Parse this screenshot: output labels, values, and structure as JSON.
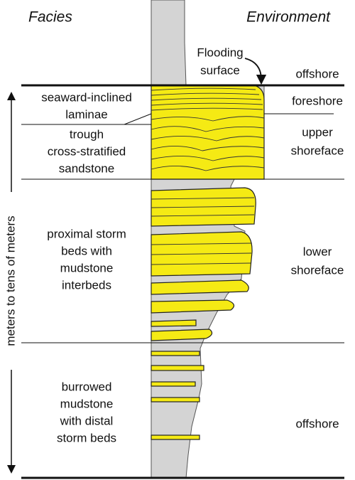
{
  "header": {
    "left": "Facies",
    "right": "Environment"
  },
  "annotation": {
    "lines": [
      "Flooding",
      "surface"
    ]
  },
  "axis_label": "meters to tens of meters",
  "facies": [
    {
      "lines": [
        "seaward-inclined",
        "laminae"
      ]
    },
    {
      "lines": [
        "trough",
        "cross-stratified",
        "sandstone"
      ]
    },
    {
      "lines": [
        "proximal storm",
        "beds with",
        "mudstone",
        "interbeds"
      ]
    },
    {
      "lines": [
        "burrowed",
        "mudstone",
        "with distal",
        "storm beds"
      ]
    }
  ],
  "environments": [
    {
      "lines": [
        "offshore"
      ]
    },
    {
      "lines": [
        "foreshore"
      ]
    },
    {
      "lines": [
        "upper",
        "shoreface"
      ]
    },
    {
      "lines": [
        "lower",
        "shoreface"
      ]
    },
    {
      "lines": [
        "offshore"
      ]
    }
  ]
}
